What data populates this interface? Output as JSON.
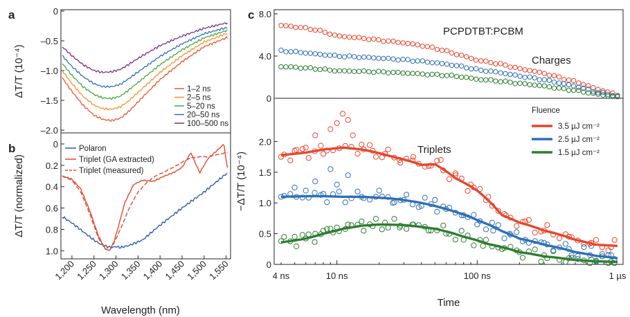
{
  "chart_data": [
    {
      "panel": "a",
      "type": "line",
      "ylabel": "ΔT/T (10⁻⁴)",
      "xlim": [
        1175,
        1560
      ],
      "ylim": [
        -2.0,
        0
      ],
      "yticks": [
        0,
        -0.5,
        -1.0,
        -1.5,
        -2.0
      ],
      "ytick_labels": [
        "0",
        "–0.5",
        "–1.0",
        "–1.5",
        "–2.0"
      ],
      "legend_position": "lower-right",
      "series": [
        {
          "name": "1–2 ns",
          "color": "#e4572e",
          "x": [
            1178,
            1200,
            1225,
            1250,
            1270,
            1290,
            1310,
            1330,
            1360,
            1400,
            1450,
            1500,
            1550
          ],
          "y": [
            -1.12,
            -1.35,
            -1.58,
            -1.75,
            -1.82,
            -1.84,
            -1.8,
            -1.68,
            -1.45,
            -1.15,
            -0.85,
            -0.6,
            -0.45
          ]
        },
        {
          "name": "2–5 ns",
          "color": "#f3922c",
          "x": [
            1178,
            1200,
            1225,
            1250,
            1270,
            1290,
            1310,
            1330,
            1360,
            1400,
            1450,
            1500,
            1550
          ],
          "y": [
            -1.0,
            -1.22,
            -1.43,
            -1.58,
            -1.64,
            -1.65,
            -1.61,
            -1.5,
            -1.3,
            -1.03,
            -0.75,
            -0.52,
            -0.38
          ]
        },
        {
          "name": "5–20 ns",
          "color": "#43a843",
          "x": [
            1178,
            1200,
            1225,
            1250,
            1270,
            1290,
            1310,
            1330,
            1360,
            1400,
            1450,
            1500,
            1550
          ],
          "y": [
            -0.88,
            -1.08,
            -1.27,
            -1.4,
            -1.46,
            -1.47,
            -1.43,
            -1.32,
            -1.14,
            -0.9,
            -0.65,
            -0.45,
            -0.33
          ]
        },
        {
          "name": "20–50 ns",
          "color": "#2f6fb8",
          "x": [
            1178,
            1200,
            1225,
            1250,
            1270,
            1290,
            1310,
            1330,
            1360,
            1400,
            1450,
            1500,
            1550
          ],
          "y": [
            -0.75,
            -0.93,
            -1.1,
            -1.22,
            -1.27,
            -1.27,
            -1.23,
            -1.13,
            -0.97,
            -0.76,
            -0.55,
            -0.38,
            -0.28
          ]
        },
        {
          "name": "100–500 ns",
          "color": "#7a2a8c",
          "x": [
            1178,
            1200,
            1225,
            1250,
            1270,
            1290,
            1310,
            1330,
            1360,
            1400,
            1450,
            1500,
            1550
          ],
          "y": [
            -0.6,
            -0.75,
            -0.9,
            -1.0,
            -1.03,
            -1.02,
            -0.98,
            -0.89,
            -0.75,
            -0.58,
            -0.42,
            -0.29,
            -0.2
          ]
        }
      ]
    },
    {
      "panel": "b",
      "type": "line",
      "xlabel": "Wavelength (nm)",
      "ylabel": "ΔT/T (normalized)",
      "xlim": [
        1175,
        1560
      ],
      "ylim": [
        0,
        1.05
      ],
      "y_inverted": true,
      "xticks": [
        1200,
        1250,
        1300,
        1350,
        1400,
        1450,
        1500,
        1550
      ],
      "xtick_labels": [
        "1,200",
        "1,250",
        "1,300",
        "1,350",
        "1,400",
        "1,450",
        "1,500",
        "1,550"
      ],
      "yticks": [
        0,
        0.2,
        0.4,
        0.6,
        0.8,
        1.0
      ],
      "ytick_labels": [
        "0",
        "0.2",
        "0.4",
        "0.6",
        "0.8",
        "1.0"
      ],
      "legend_position": "top-left",
      "series": [
        {
          "name": "Polaron",
          "color": "#2f5fa8",
          "style": "solid",
          "x": [
            1178,
            1200,
            1225,
            1250,
            1270,
            1290,
            1300,
            1310,
            1330,
            1360,
            1400,
            1450,
            1500,
            1550
          ],
          "y": [
            0.68,
            0.74,
            0.82,
            0.9,
            0.95,
            0.97,
            0.96,
            0.97,
            0.95,
            0.9,
            0.76,
            0.6,
            0.45,
            0.28
          ]
        },
        {
          "name": "Triplet (GA extracted)",
          "color": "#e4472e",
          "style": "solid",
          "x": [
            1178,
            1200,
            1220,
            1240,
            1260,
            1275,
            1285,
            1295,
            1305,
            1320,
            1340,
            1360,
            1385,
            1410,
            1430,
            1450,
            1470,
            1490,
            1510,
            1530,
            1545,
            1552
          ],
          "y": [
            0.3,
            0.33,
            0.42,
            0.62,
            0.86,
            0.98,
            1.0,
            0.92,
            0.78,
            0.55,
            0.38,
            0.34,
            0.35,
            0.3,
            0.27,
            0.22,
            0.08,
            0.27,
            0.13,
            0.06,
            0.0,
            0.22
          ]
        },
        {
          "name": "Triplet (measured)",
          "color": "#e4472e",
          "style": "dashed",
          "x": [
            1178,
            1200,
            1220,
            1240,
            1260,
            1275,
            1285,
            1295,
            1310,
            1330,
            1350,
            1370,
            1390,
            1410,
            1430,
            1450,
            1470,
            1490,
            1510,
            1530,
            1552
          ],
          "y": [
            0.3,
            0.34,
            0.45,
            0.65,
            0.88,
            0.98,
            1.0,
            0.93,
            0.8,
            0.6,
            0.45,
            0.36,
            0.3,
            0.26,
            0.22,
            0.17,
            0.13,
            0.12,
            0.12,
            0.1,
            0.08
          ]
        }
      ]
    },
    {
      "panel": "c",
      "type": "scatter",
      "title": "PCPDTBT:PCBM",
      "ylabel": "−ΔT/T (10⁻⁴)",
      "xlabel": "Time",
      "x_scale": "log",
      "xlim": [
        4,
        1000
      ],
      "xticks": [
        4,
        10,
        100,
        1000
      ],
      "xtick_labels": [
        "4 ns",
        "10 ns",
        "100 ns",
        "1 µs"
      ],
      "top_subplot": {
        "annotation": "Charges",
        "ylim": [
          0,
          8.0
        ],
        "yticks": [
          0,
          4.0,
          8.0
        ],
        "ytick_labels": [
          "0",
          "4.0",
          "8.0"
        ],
        "series": [
          {
            "fluence": "3.5 µJ cm⁻²",
            "color": "#e4472e",
            "x": [
              4,
              7,
              10,
              20,
              40,
              70,
              100,
              200,
              400,
              700,
              1000
            ],
            "y": [
              6.9,
              6.5,
              5.9,
              5.5,
              5.0,
              4.2,
              3.6,
              2.8,
              1.9,
              0.9,
              0.3
            ]
          },
          {
            "fluence": "2.5 µJ cm⁻²",
            "color": "#2f6fb8",
            "x": [
              4,
              7,
              10,
              20,
              40,
              70,
              100,
              200,
              400,
              700,
              1000
            ],
            "y": [
              4.5,
              4.2,
              4.0,
              3.8,
              3.5,
              3.1,
              2.7,
              2.1,
              1.4,
              0.6,
              0.2
            ]
          },
          {
            "fluence": "1.5 µJ cm⁻²",
            "color": "#2e7d32",
            "x": [
              4,
              7,
              10,
              20,
              40,
              70,
              100,
              200,
              400,
              700,
              1000
            ],
            "y": [
              3.0,
              2.8,
              2.6,
              2.5,
              2.3,
              2.1,
              1.8,
              1.4,
              0.9,
              0.4,
              0.1
            ]
          }
        ]
      },
      "bottom_subplot": {
        "annotation": "Triplets",
        "ylim": [
          0,
          2.5
        ],
        "yticks": [
          0,
          0.5,
          1.0,
          1.5,
          2.0
        ],
        "ytick_labels": [
          "0",
          "0.5",
          "1.0",
          "1.5",
          "2.0"
        ],
        "legend_title": "Fluence",
        "legend_position": "top-right",
        "series": [
          {
            "name": "3.5 µJ cm⁻²",
            "color": "#e4472e",
            "fit_x": [
              4,
              6,
              8,
              11,
              15,
              25,
              40,
              50,
              70,
              100,
              150,
              200,
              300,
              500,
              700,
              1000
            ],
            "fit_y": [
              1.78,
              1.82,
              1.87,
              1.9,
              1.87,
              1.75,
              1.62,
              1.63,
              1.4,
              1.2,
              0.8,
              0.68,
              0.55,
              0.4,
              0.32,
              0.3
            ],
            "pts_x": [
              4,
              5,
              6,
              7,
              8,
              9,
              10,
              11,
              12,
              13,
              15,
              18,
              22,
              28,
              35,
              45,
              55,
              70,
              90,
              120,
              160,
              220,
              300,
              450,
              650,
              900
            ],
            "pts_y": [
              1.75,
              1.85,
              1.9,
              2.1,
              1.8,
              2.2,
              2.3,
              2.45,
              2.35,
              2.1,
              1.95,
              1.85,
              1.8,
              1.7,
              1.75,
              1.6,
              1.7,
              1.45,
              1.3,
              1.1,
              0.8,
              0.7,
              0.55,
              0.45,
              0.35,
              0.28
            ]
          },
          {
            "name": "2.5 µJ cm⁻²",
            "color": "#2f6fb8",
            "fit_x": [
              4,
              6,
              8,
              11,
              15,
              25,
              40,
              60,
              100,
              150,
              200,
              300,
              500,
              700,
              1000
            ],
            "fit_y": [
              1.1,
              1.11,
              1.11,
              1.1,
              1.1,
              1.07,
              1.0,
              0.9,
              0.72,
              0.54,
              0.42,
              0.32,
              0.2,
              0.14,
              0.1
            ],
            "pts_x": [
              4,
              5,
              6,
              7,
              8,
              9,
              10,
              12,
              15,
              20,
              25,
              30,
              40,
              50,
              60,
              80,
              100,
              130,
              170,
              220,
              300,
              450,
              650,
              900
            ],
            "pts_y": [
              1.1,
              1.25,
              1.2,
              1.35,
              1.15,
              1.55,
              1.3,
              1.45,
              1.1,
              1.2,
              1.0,
              1.05,
              0.95,
              1.05,
              0.9,
              0.8,
              0.65,
              0.55,
              0.5,
              0.4,
              0.35,
              0.25,
              0.3,
              0.15
            ]
          },
          {
            "name": "1.5 µJ cm⁻²",
            "color": "#2e7d32",
            "fit_x": [
              4,
              6,
              8,
              11,
              15,
              20,
              30,
              50,
              80,
              120,
              200,
              300,
              500,
              700,
              1000
            ],
            "fit_y": [
              0.36,
              0.42,
              0.5,
              0.58,
              0.63,
              0.65,
              0.64,
              0.58,
              0.45,
              0.33,
              0.2,
              0.13,
              0.07,
              0.05,
              0.04
            ],
            "pts_x": [
              4,
              5,
              6,
              7,
              8,
              9,
              10,
              12,
              15,
              18,
              22,
              28,
              35,
              45,
              60,
              80,
              110,
              150,
              200,
              300,
              450,
              650,
              900
            ],
            "pts_y": [
              0.38,
              0.45,
              0.42,
              0.5,
              0.55,
              0.58,
              0.6,
              0.65,
              0.7,
              0.62,
              0.68,
              0.6,
              0.65,
              0.55,
              0.5,
              0.4,
              0.3,
              0.25,
              0.2,
              0.15,
              0.1,
              0.08,
              0.05
            ]
          }
        ]
      }
    }
  ]
}
